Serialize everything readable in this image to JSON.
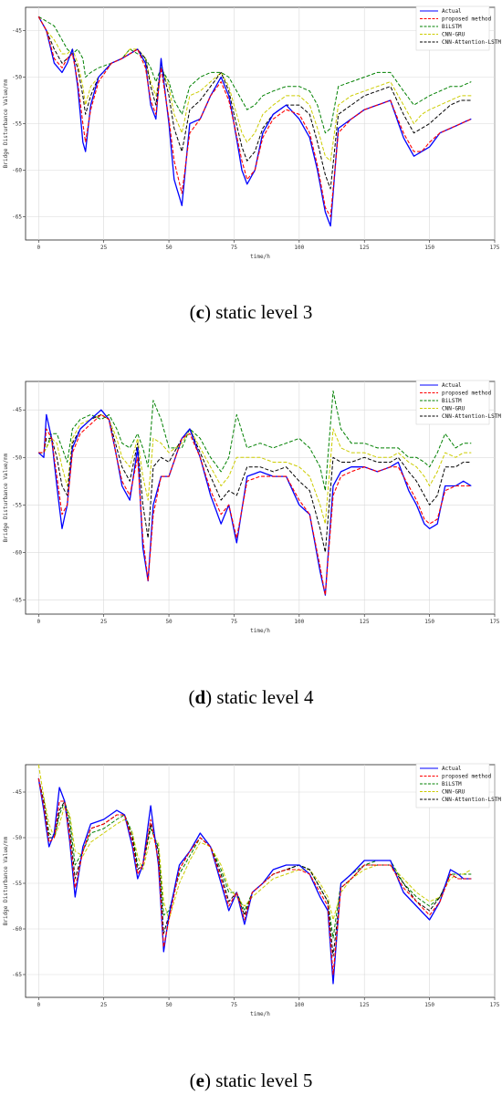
{
  "legend_labels": [
    "Actual",
    "proposed method",
    "BiLSTM",
    "CNN-GRU",
    "CNN-Attention-LSTM"
  ],
  "series_colors": [
    "#0000ff",
    "#ff0000",
    "#008000",
    "#cccc00",
    "#000000"
  ],
  "chart_data": [
    {
      "type": "line",
      "caption_letter": "c",
      "caption_text": "static level 3",
      "xlabel": "time/h",
      "ylabel": "Bridge Disturbance Value/mm",
      "xlim": [
        -5,
        175
      ],
      "ylim": [
        -67.5,
        -42.5
      ],
      "xticks": [
        0,
        25,
        50,
        75,
        100,
        125,
        150,
        175
      ],
      "yticks": [
        -45,
        -50,
        -55,
        -60,
        -65
      ],
      "ytick_labels": [
        "-45",
        "-50",
        "-55",
        "-60",
        "-65"
      ],
      "anchors": {
        "x": [
          0,
          3,
          6,
          9,
          11,
          13,
          15,
          17,
          18,
          20,
          23,
          28,
          32,
          35,
          38,
          41,
          43,
          45,
          47,
          50,
          52,
          55,
          58,
          62,
          66,
          70,
          73,
          75,
          78,
          80,
          83,
          86,
          90,
          95,
          100,
          104,
          107,
          110,
          112,
          115,
          120,
          125,
          130,
          135,
          140,
          144,
          147,
          150,
          154,
          158,
          162,
          166
        ],
        "Actual": [
          -43.5,
          -45,
          -48.5,
          -49.5,
          -48.5,
          -47,
          -51,
          -57,
          -58,
          -53,
          -50,
          -48.5,
          -48,
          -47.5,
          -47,
          -48.5,
          -53,
          -54.5,
          -48,
          -55,
          -61,
          -63.8,
          -55,
          -54.5,
          -52,
          -50,
          -52,
          -55,
          -60,
          -61.5,
          -60,
          -56,
          -54,
          -53,
          -54.5,
          -56.5,
          -60,
          -64.5,
          -66,
          -55.5,
          -54.5,
          -53.5,
          -53,
          -52.5,
          -56.5,
          -58.5,
          -58,
          -57.5,
          -56,
          -55.5,
          -55,
          -54.5
        ],
        "proposed method": [
          -43.5,
          -45,
          -48,
          -49,
          -48,
          -47.5,
          -50.5,
          -55,
          -57,
          -53.5,
          -50.5,
          -48.5,
          -48,
          -47.5,
          -47,
          -49,
          -52.5,
          -54,
          -49,
          -54.5,
          -59,
          -62.5,
          -56,
          -54.5,
          -52,
          -50.5,
          -52.5,
          -55,
          -59,
          -61,
          -60,
          -56.5,
          -54.5,
          -53.5,
          -54,
          -56,
          -59.5,
          -64,
          -65,
          -56,
          -54.5,
          -53.5,
          -53,
          -52.5,
          -56,
          -58,
          -58,
          -57,
          -56,
          -55.5,
          -55,
          -54.5
        ],
        "BiLSTM": [
          -43.5,
          -44,
          -44.5,
          -46,
          -47,
          -47.5,
          -47,
          -48,
          -50,
          -49.5,
          -49,
          -48.5,
          -48,
          -47,
          -47.5,
          -48,
          -49,
          -50.5,
          -49,
          -50.5,
          -52.5,
          -54,
          -51,
          -50,
          -49.5,
          -49.5,
          -50,
          -51,
          -52.5,
          -53.5,
          -53,
          -52,
          -51.5,
          -51,
          -51,
          -51.5,
          -53,
          -56,
          -55.5,
          -51,
          -50.5,
          -50,
          -49.5,
          -49.5,
          -51.5,
          -53,
          -52.5,
          -52,
          -51.5,
          -51,
          -51,
          -50.5
        ],
        "CNN-GRU": [
          -43.5,
          -45,
          -46,
          -47.5,
          -47.5,
          -47,
          -48.5,
          -51,
          -53,
          -51,
          -50,
          -48.5,
          -48,
          -47,
          -47,
          -48,
          -50.5,
          -52,
          -49,
          -51,
          -54,
          -56,
          -52,
          -51.5,
          -50.5,
          -49.5,
          -51,
          -53,
          -56,
          -57,
          -56,
          -54,
          -53,
          -52,
          -52,
          -53,
          -55.5,
          -58.5,
          -59,
          -53,
          -52,
          -51.5,
          -51,
          -50.5,
          -53,
          -55,
          -54,
          -53.5,
          -53,
          -52.5,
          -52,
          -52
        ],
        "CNN-Attention-LSTM": [
          -43.5,
          -45,
          -47,
          -48.5,
          -48,
          -47.5,
          -49,
          -52,
          -54,
          -52,
          -50,
          -48.5,
          -48,
          -47.5,
          -47,
          -48,
          -51,
          -53,
          -48.5,
          -52,
          -55.5,
          -58,
          -53.5,
          -52.5,
          -51,
          -49.5,
          -51.5,
          -54,
          -57.5,
          -59,
          -58,
          -55.5,
          -54,
          -53,
          -53,
          -54,
          -57,
          -60.5,
          -62,
          -54,
          -53,
          -52,
          -51.5,
          -51,
          -54,
          -56,
          -55.5,
          -55,
          -54,
          -53,
          -52.5,
          -52.5
        ]
      }
    },
    {
      "type": "line",
      "caption_letter": "d",
      "caption_text": "static level 4",
      "xlabel": "time/h",
      "ylabel": "Bridge Disturbance Value/mm",
      "xlim": [
        -5,
        175
      ],
      "ylim": [
        -66.5,
        -42
      ],
      "xticks": [
        0,
        25,
        50,
        75,
        100,
        125,
        150,
        175
      ],
      "yticks": [
        -45,
        -50,
        -55,
        -60,
        -65
      ],
      "ytick_labels": [
        "-45",
        "-50",
        "-55",
        "-60",
        "-65"
      ],
      "anchors": {
        "x": [
          0,
          2,
          3,
          5,
          7,
          9,
          11,
          13,
          16,
          20,
          24,
          27,
          30,
          32,
          35,
          38,
          40,
          42,
          44,
          47,
          50,
          55,
          58,
          62,
          66,
          70,
          73,
          76,
          80,
          85,
          90,
          95,
          100,
          104,
          108,
          110,
          113,
          116,
          120,
          125,
          130,
          135,
          138,
          142,
          145,
          148,
          150,
          153,
          156,
          160,
          163,
          166
        ],
        "Actual": [
          -49.5,
          -50,
          -45.5,
          -48,
          -53,
          -57.5,
          -55,
          -49,
          -47,
          -46,
          -45,
          -46,
          -50,
          -53,
          -54.5,
          -49,
          -59.5,
          -63,
          -55,
          -52,
          -52,
          -48,
          -47,
          -50,
          -54,
          -57,
          -55,
          -59,
          -52,
          -51.5,
          -52,
          -52,
          -55,
          -56,
          -62,
          -64.5,
          -53,
          -51.5,
          -51,
          -51,
          -51.5,
          -51,
          -50.5,
          -53.5,
          -55,
          -57,
          -57.5,
          -57,
          -53,
          -53,
          -52.5,
          -53
        ],
        "proposed method": [
          -49.5,
          -49.5,
          -47,
          -48,
          -52,
          -56,
          -55,
          -49.5,
          -47.5,
          -46.5,
          -45.5,
          -46,
          -50,
          -52.5,
          -54,
          -50,
          -58.5,
          -63,
          -56,
          -52,
          -52,
          -48,
          -47.5,
          -50,
          -53.5,
          -56,
          -55,
          -58.5,
          -52.5,
          -52,
          -52,
          -52,
          -54.5,
          -56,
          -61.5,
          -64.5,
          -54,
          -52,
          -51.5,
          -51,
          -51.5,
          -51,
          -51,
          -53,
          -54.5,
          -56.5,
          -57,
          -56.5,
          -53.5,
          -53,
          -53,
          -53
        ],
        "BiLSTM": [
          -49.5,
          -49.5,
          -49,
          -47.5,
          -47.5,
          -49,
          -50.5,
          -47,
          -46,
          -45.5,
          -46,
          -45.5,
          -47,
          -48.5,
          -49,
          -47.5,
          -49,
          -51,
          -44,
          -46,
          -49,
          -49,
          -47,
          -48,
          -50,
          -51.5,
          -50,
          -45.5,
          -49,
          -48.5,
          -49,
          -48.5,
          -48,
          -49,
          -51,
          -53.5,
          -43,
          -47,
          -48.5,
          -48.5,
          -49,
          -49,
          -49,
          -50,
          -50,
          -50.5,
          -51,
          -49.5,
          -47.5,
          -49,
          -48.5,
          -48.5
        ],
        "CNN-GRU": [
          -49.5,
          -49.5,
          -49,
          -48,
          -48.5,
          -51,
          -53,
          -48,
          -46.5,
          -46,
          -45.5,
          -46,
          -48,
          -50,
          -51,
          -48,
          -52,
          -54.5,
          -48,
          -48.5,
          -49.5,
          -48.5,
          -47,
          -49,
          -51,
          -53,
          -52,
          -50,
          -50,
          -50,
          -50.5,
          -50.5,
          -51,
          -52,
          -55,
          -57,
          -47,
          -49,
          -49.5,
          -49.5,
          -50,
          -50,
          -49.5,
          -50.5,
          -51,
          -52,
          -53,
          -51.5,
          -49.5,
          -50,
          -49.5,
          -49.5
        ],
        "CNN-Attention-LSTM": [
          -49.5,
          -49.5,
          -48,
          -48,
          -50,
          -53,
          -54,
          -48.5,
          -47,
          -46,
          -45.5,
          -46,
          -49,
          -51,
          -52.5,
          -48.5,
          -55,
          -58.5,
          -51,
          -50,
          -50.5,
          -48,
          -47,
          -49.5,
          -52,
          -54.5,
          -53.5,
          -54,
          -51,
          -51,
          -51.5,
          -51,
          -52.5,
          -53.5,
          -57.5,
          -60,
          -50,
          -50.5,
          -50.5,
          -50,
          -50.5,
          -50.5,
          -50,
          -51.5,
          -52.5,
          -54,
          -55,
          -54,
          -51,
          -51,
          -50.5,
          -50.5
        ]
      }
    },
    {
      "type": "line",
      "caption_letter": "e",
      "caption_text": "static level 5",
      "xlabel": "time/h",
      "ylabel": "Bridge Disturbance Value/mm",
      "xlim": [
        -5,
        175
      ],
      "ylim": [
        -67.5,
        -42
      ],
      "xticks": [
        0,
        25,
        50,
        75,
        100,
        125,
        150,
        175
      ],
      "yticks": [
        -45,
        -50,
        -55,
        -60,
        -65
      ],
      "ytick_labels": [
        "-45",
        "-50",
        "-55",
        "-60",
        "-65"
      ],
      "anchors": {
        "x": [
          0,
          2,
          4,
          6,
          8,
          10,
          12,
          14,
          17,
          20,
          25,
          30,
          33,
          36,
          38,
          40,
          43,
          46,
          48,
          50,
          54,
          58,
          62,
          66,
          70,
          73,
          76,
          79,
          82,
          86,
          90,
          95,
          100,
          104,
          108,
          111,
          113,
          116,
          120,
          125,
          130,
          135,
          140,
          145,
          150,
          154,
          158,
          161,
          163,
          166
        ],
        "Actual": [
          -43.5,
          -47,
          -51,
          -49.5,
          -44.5,
          -46,
          -50.5,
          -56.5,
          -51,
          -48.5,
          -48,
          -47,
          -47.5,
          -51,
          -54.5,
          -53,
          -46.5,
          -53,
          -62.5,
          -58.5,
          -53,
          -51.5,
          -49.5,
          -51,
          -55,
          -58,
          -56,
          -59.5,
          -56,
          -55,
          -53.5,
          -53,
          -53,
          -54,
          -56.5,
          -58,
          -66,
          -55,
          -54,
          -52.5,
          -52.5,
          -52.5,
          -56,
          -57.5,
          -59,
          -57,
          -53.5,
          -54,
          -54.5,
          -54.5
        ],
        "proposed method": [
          -43.5,
          -46.5,
          -50.5,
          -50,
          -46,
          -46,
          -50,
          -55.5,
          -51.5,
          -49,
          -48.5,
          -47.5,
          -47.5,
          -50.5,
          -54,
          -53,
          -48,
          -52.5,
          -62,
          -59,
          -53.5,
          -51.5,
          -50,
          -51,
          -54.5,
          -57.5,
          -56,
          -59,
          -56,
          -55,
          -54,
          -53.5,
          -53.5,
          -54,
          -56,
          -57.5,
          -65,
          -55.5,
          -54.5,
          -53,
          -53,
          -53,
          -55.5,
          -57,
          -58.5,
          -57,
          -54,
          -54.5,
          -54.5,
          -54.5
        ],
        "BiLSTM": [
          -43.5,
          -46,
          -49.5,
          -50,
          -47.5,
          -46,
          -48,
          -53,
          -51.5,
          -49.5,
          -49,
          -48,
          -47.5,
          -49.5,
          -53,
          -53,
          -49,
          -51,
          -58.5,
          -58,
          -54,
          -52,
          -50,
          -51,
          -53.5,
          -56,
          -56,
          -58,
          -56,
          -55,
          -54,
          -53.5,
          -53,
          -53.5,
          -55.5,
          -57,
          -61,
          -55,
          -54,
          -53,
          -52.5,
          -52.5,
          -55,
          -56.5,
          -57.5,
          -56.5,
          -54,
          -54,
          -54,
          -54
        ],
        "CNN-GRU": [
          -42,
          -45.5,
          -48.5,
          -50,
          -48.5,
          -46.5,
          -47.5,
          -51.5,
          -52,
          -50.5,
          -49.5,
          -48.5,
          -48,
          -49.5,
          -52,
          -53.5,
          -50,
          -50.5,
          -57,
          -59,
          -55,
          -52.5,
          -50.5,
          -51,
          -53,
          -55.5,
          -56.5,
          -57.5,
          -56.5,
          -55.5,
          -54.5,
          -54,
          -53.5,
          -53.5,
          -55,
          -56.5,
          -59,
          -56,
          -54.5,
          -53.5,
          -53,
          -53,
          -54.5,
          -56,
          -57,
          -56.5,
          -54.5,
          -54,
          -54,
          -53.5
        ],
        "CNN-Attention-LSTM": [
          -43.5,
          -46,
          -50,
          -50,
          -47,
          -46,
          -49,
          -54.5,
          -51.5,
          -49,
          -48.5,
          -47.5,
          -47.5,
          -50,
          -53.5,
          -53,
          -48.5,
          -51.5,
          -60.5,
          -58.5,
          -53.5,
          -51.5,
          -50,
          -51,
          -54,
          -57,
          -56,
          -58.5,
          -56,
          -55,
          -54,
          -53.5,
          -53,
          -53.5,
          -55.5,
          -57,
          -63,
          -55.5,
          -54.5,
          -53,
          -53,
          -53,
          -55,
          -57,
          -58,
          -56.5,
          -54,
          -54.5,
          -54.5,
          -54.5
        ]
      }
    }
  ]
}
